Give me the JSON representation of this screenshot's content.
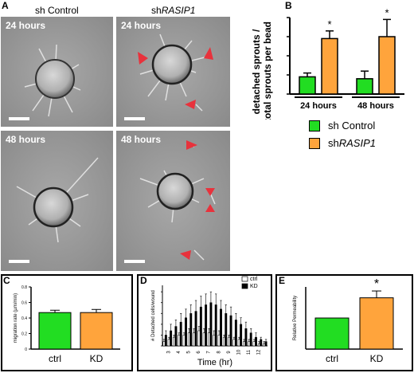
{
  "panelA": {
    "letter": "A",
    "col_left": "sh Control",
    "col_right_prefix": "sh",
    "col_right_italic": "RASIP1",
    "time_top": "24 hours",
    "time_bottom": "48 hours"
  },
  "panelB": {
    "letter": "B",
    "chart_data": {
      "type": "bar",
      "categories": [
        "24 hours",
        "48 hours"
      ],
      "ylabel": "detached sprouts / total sprouts per bead",
      "ylim": [
        0,
        0.4
      ],
      "series": [
        {
          "name": "sh Control",
          "values": [
            0.09,
            0.08
          ],
          "errors": [
            0.02,
            0.04
          ],
          "color": "#22dd22"
        },
        {
          "name": "shRASIP1",
          "values": [
            0.29,
            0.3
          ],
          "errors": [
            0.04,
            0.09
          ],
          "color": "#ffa43c"
        }
      ],
      "annotations": [
        "*",
        "*"
      ]
    },
    "legend": [
      {
        "label": "sh Control",
        "color": "#22dd22"
      },
      {
        "label_prefix": "sh",
        "label_italic": "RASIP1",
        "color": "#ffa43c"
      }
    ]
  },
  "panelC": {
    "letter": "C",
    "chart_data": {
      "type": "bar",
      "categories": [
        "ctrl",
        "KD"
      ],
      "values": [
        0.47,
        0.47
      ],
      "errors": [
        0.03,
        0.04
      ],
      "colors": [
        "#22dd22",
        "#ffa43c"
      ],
      "ylabel": "migration rate (µm/min)",
      "ylim": [
        0,
        0.8
      ],
      "yticks": [
        "0",
        "0.2",
        "0.4",
        "0.6",
        "0.8"
      ]
    }
  },
  "panelD": {
    "letter": "D",
    "chart_data": {
      "type": "bar",
      "xlabel": "Time (hr)",
      "ylabel": "# Detached cells/wound",
      "x": [
        2.5,
        3,
        3.5,
        4,
        4.5,
        5,
        5.5,
        6,
        6.5,
        7,
        7.5,
        8,
        8.5,
        9,
        9.5,
        10,
        10.5,
        11,
        11.5,
        12,
        12.5
      ],
      "xticks": [
        "3",
        "4",
        "5",
        "6",
        "7",
        "8",
        "9",
        "10",
        "11",
        "12"
      ],
      "series": [
        {
          "name": "ctrl",
          "values": [
            2,
            3,
            4,
            5,
            5,
            6,
            6,
            7,
            6,
            6,
            5,
            5,
            4,
            4,
            3,
            3,
            2,
            2,
            2,
            1,
            1
          ],
          "errors": [
            1,
            1,
            1,
            1,
            1,
            2,
            2,
            2,
            2,
            2,
            2,
            2,
            1,
            1,
            1,
            1,
            1,
            1,
            1,
            1,
            1
          ],
          "color": "#ffffff"
        },
        {
          "name": "KD",
          "values": [
            5,
            7,
            9,
            11,
            13,
            15,
            16,
            18,
            19,
            20,
            19,
            17,
            15,
            14,
            12,
            10,
            8,
            6,
            4,
            3,
            2
          ],
          "errors": [
            2,
            3,
            3,
            4,
            4,
            4,
            5,
            5,
            5,
            5,
            5,
            4,
            4,
            4,
            3,
            3,
            3,
            2,
            2,
            1,
            1
          ],
          "color": "#000000"
        }
      ]
    }
  },
  "panelE": {
    "letter": "E",
    "chart_data": {
      "type": "bar",
      "categories": [
        "ctrl",
        "KD"
      ],
      "values": [
        1.0,
        1.65
      ],
      "errors": [
        0,
        0.22
      ],
      "colors": [
        "#22dd22",
        "#ffa43c"
      ],
      "ylabel": "Relative Permeability",
      "ylim": [
        0,
        2.0
      ],
      "annotations": [
        "",
        "*"
      ]
    }
  },
  "colors": {
    "green": "#22dd22",
    "orange": "#ffa43c",
    "arrow_red": "#e8323c"
  }
}
